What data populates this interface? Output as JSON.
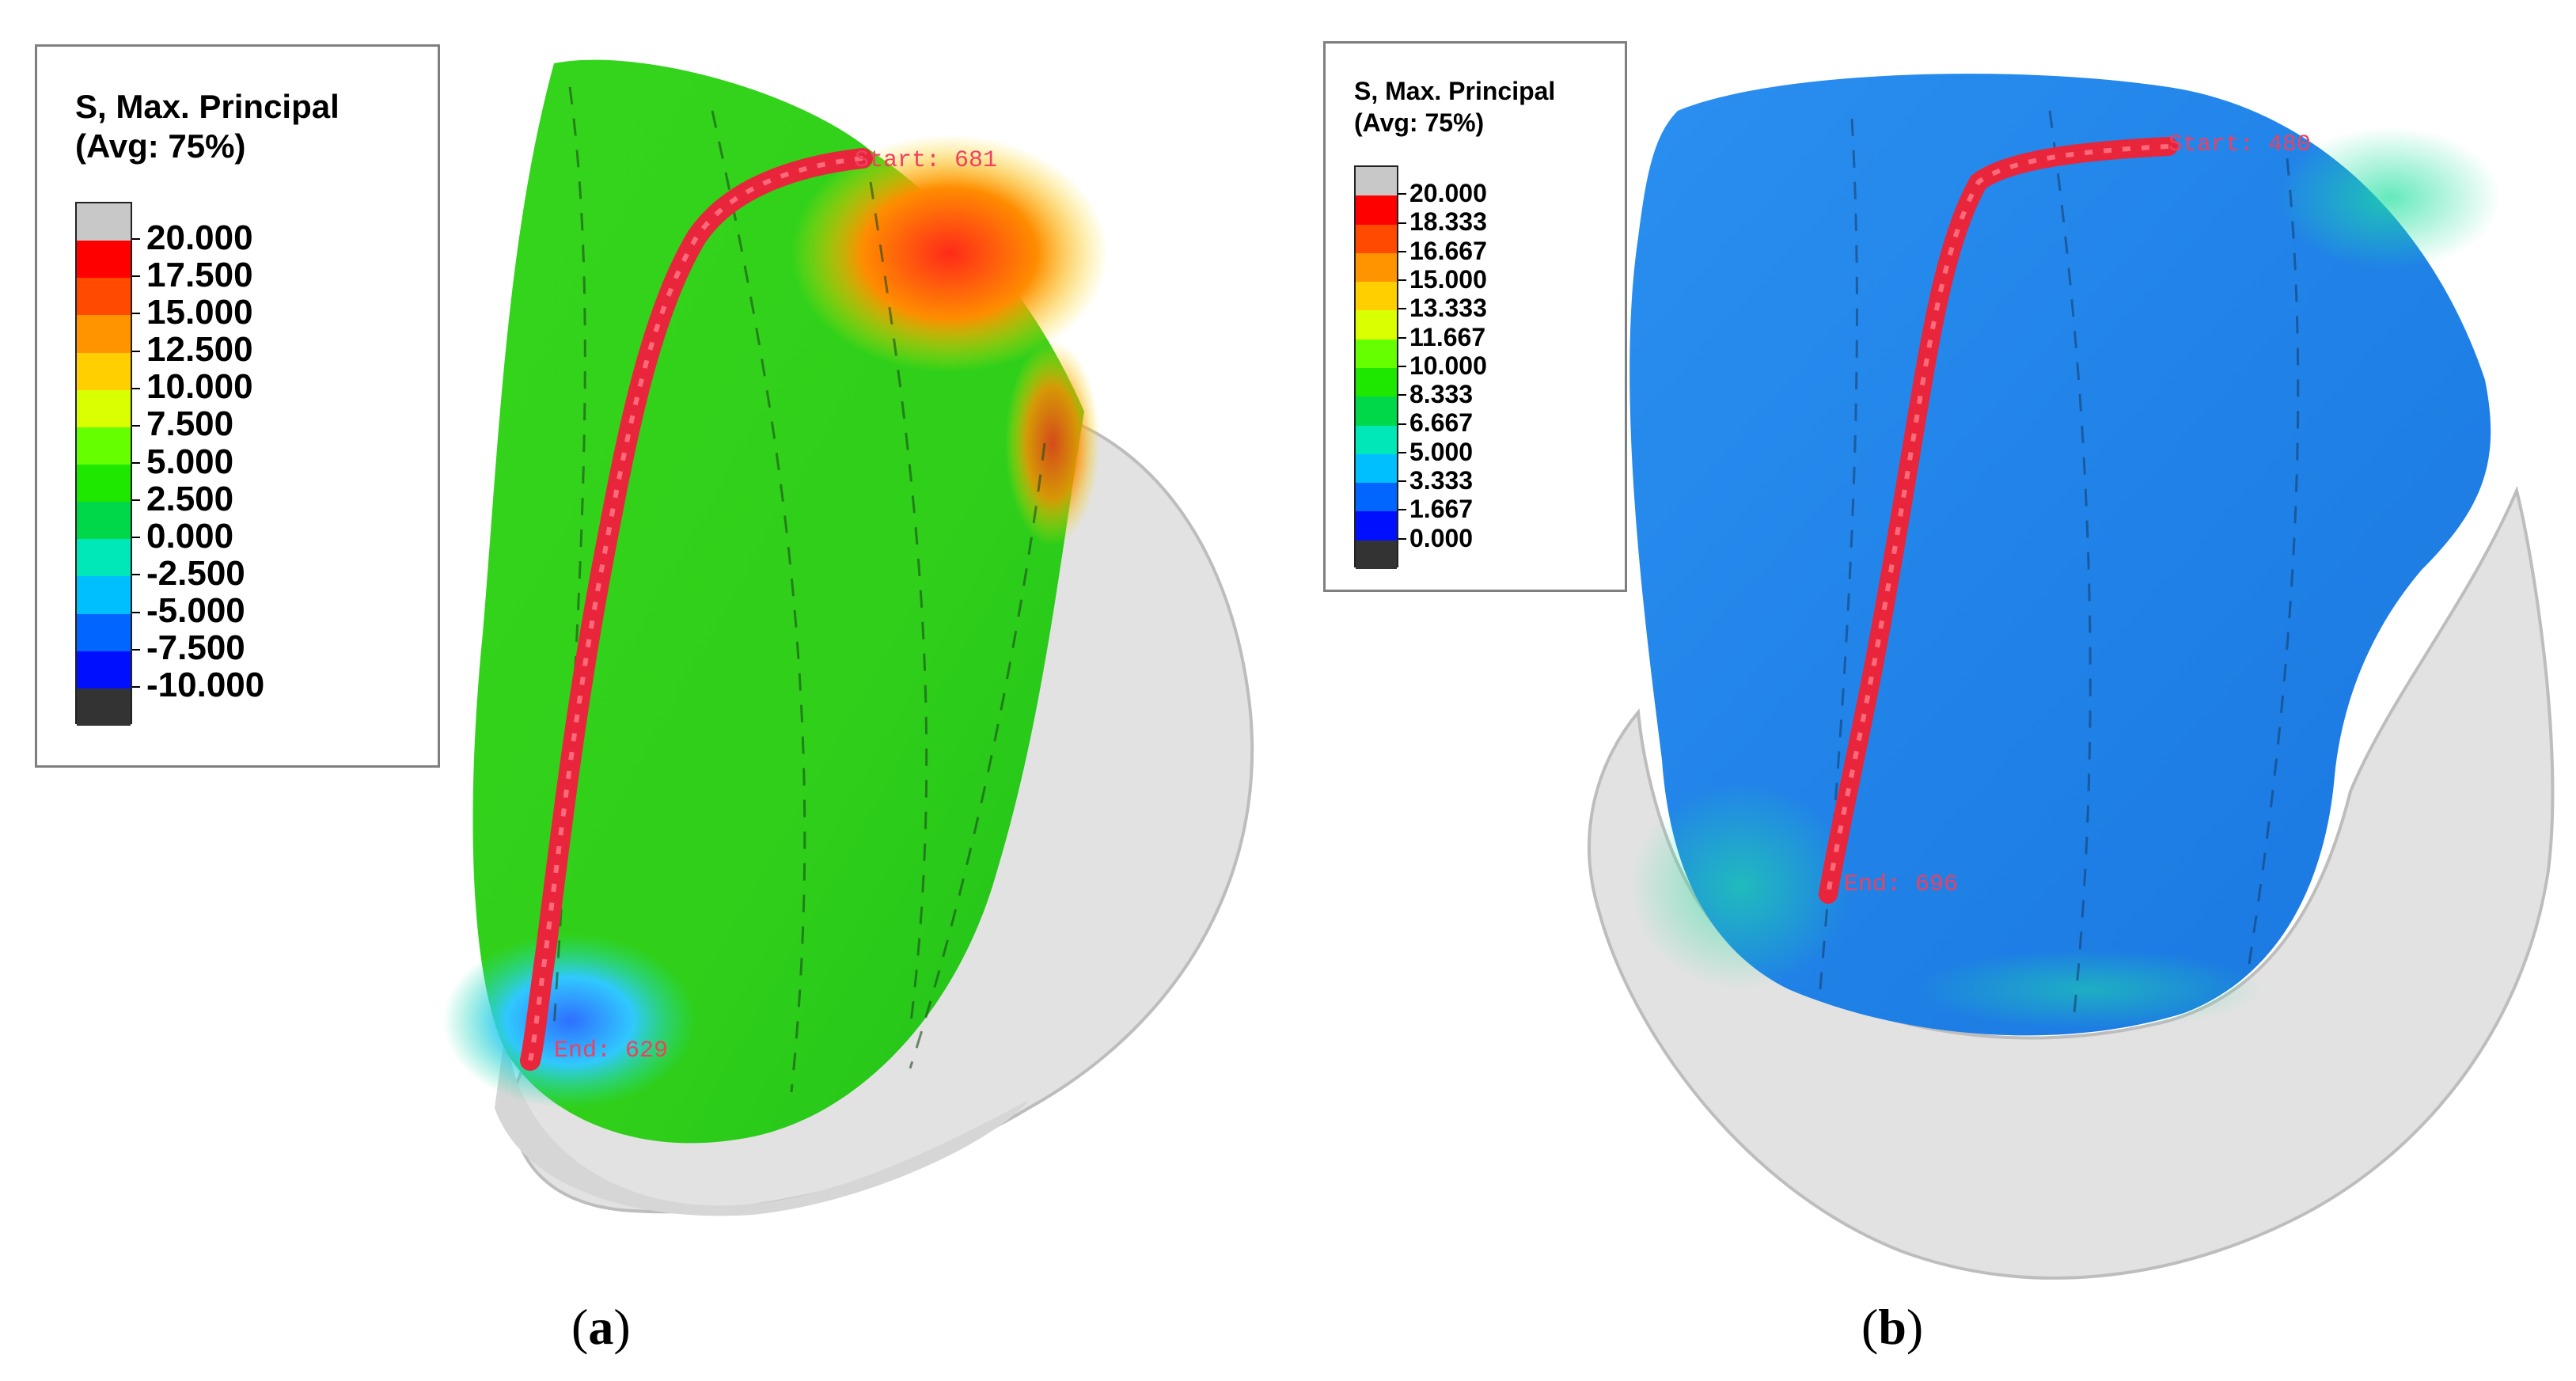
{
  "panels": [
    {
      "id": "a",
      "caption_open": "(",
      "caption_letter": "a",
      "caption_close": ")",
      "legend": {
        "title_line1": "S, Max. Principal",
        "title_line2": "(Avg: 75%)",
        "labels": [
          "20.000",
          "17.500",
          "15.000",
          "12.500",
          "10.000",
          "7.500",
          "5.000",
          "2.500",
          "0.000",
          "-2.500",
          "-5.000",
          "-7.500",
          "-10.000"
        ],
        "swatch_colors": [
          "#c8c8c8",
          "#ff0000",
          "#ff4a00",
          "#ff9400",
          "#ffcf00",
          "#d9ff00",
          "#66ff00",
          "#1fe800",
          "#00d84a",
          "#00e8b8",
          "#00bfff",
          "#0066ff",
          "#0010ff",
          "#333333"
        ]
      },
      "path_start_label": "Start: 681",
      "path_end_label": "End: 629",
      "mesh_colors": {
        "body": "#33d41a",
        "hot": "#ff3b1f",
        "warm": "#f5c400",
        "cold": "#3aa0ff",
        "bone": "#e4e4e4",
        "path": "#e8253b"
      }
    },
    {
      "id": "b",
      "caption_open": "(",
      "caption_letter": "b",
      "caption_close": ")",
      "legend": {
        "title_line1": "S, Max. Principal",
        "title_line2": "(Avg: 75%)",
        "labels": [
          "20.000",
          "18.333",
          "16.667",
          "15.000",
          "13.333",
          "11.667",
          "10.000",
          "8.333",
          "6.667",
          "5.000",
          "3.333",
          "1.667",
          "0.000"
        ],
        "swatch_colors": [
          "#c8c8c8",
          "#ff0000",
          "#ff4a00",
          "#ff9400",
          "#ffcf00",
          "#d9ff00",
          "#66ff00",
          "#1fe800",
          "#00d84a",
          "#00e8b8",
          "#00bfff",
          "#0066ff",
          "#0010ff",
          "#333333"
        ]
      },
      "path_start_label": "Start: 480",
      "path_end_label": "End: 696",
      "mesh_colors": {
        "body": "#1f8fe6",
        "hot": "#00c8c0",
        "warm": "#20d870",
        "cold": "#1060e0",
        "bone": "#e4e4e4",
        "path": "#e8253b"
      }
    }
  ]
}
